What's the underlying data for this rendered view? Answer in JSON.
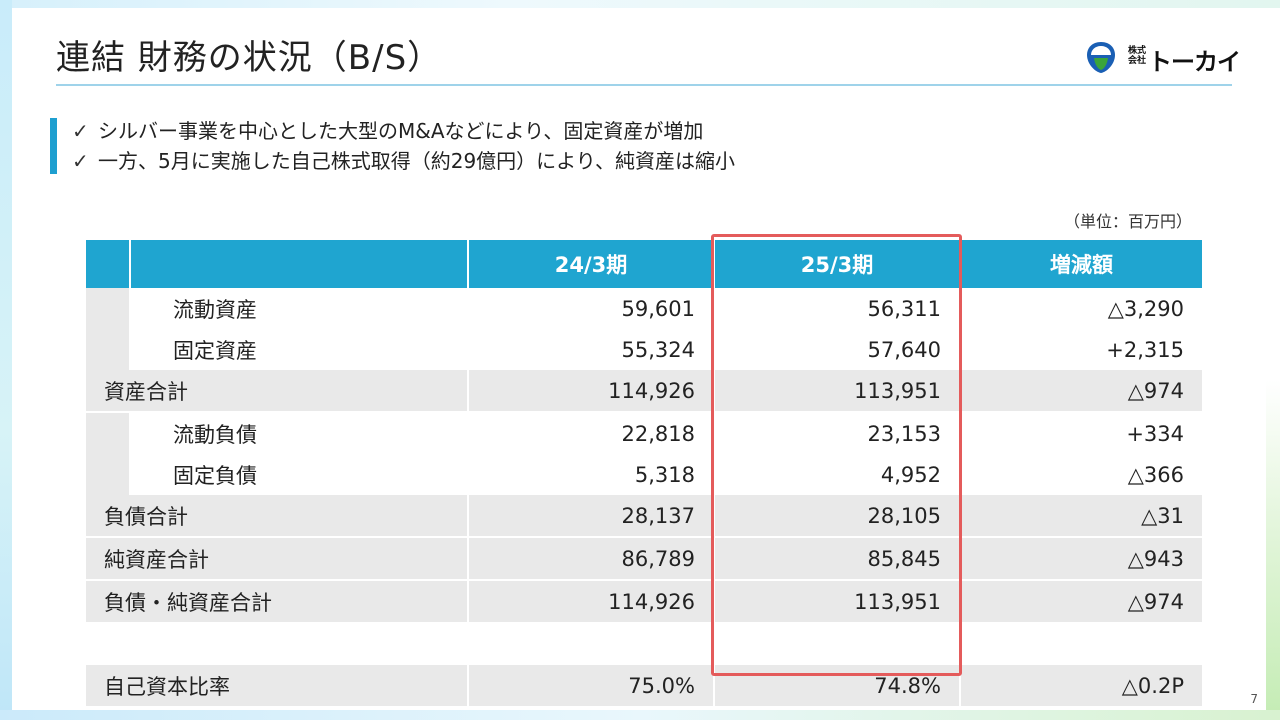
{
  "slide": {
    "title": "連結 財務の状況（B/S）",
    "logo": {
      "small_text": "株式\n会社",
      "name": "トーカイ"
    },
    "bullets": [
      {
        "mark": "✓",
        "text": "シルバー事業を中心とした大型のM&Aなどにより、固定資産が増加"
      },
      {
        "mark": "✓",
        "text": "一方、5月に実施した自己株式取得（約29億円）により、純資産は縮小"
      }
    ],
    "unit": "（単位：百万円）",
    "page_number": "7"
  },
  "table": {
    "headers": [
      "",
      "24/3期",
      "25/3期",
      "増減額"
    ],
    "rows": [
      {
        "label": "流動資産",
        "v1": "59,601",
        "v2": "56,311",
        "diff": "△3,290"
      },
      {
        "label": "固定資産",
        "v1": "55,324",
        "v2": "57,640",
        "diff": "+2,315"
      },
      {
        "label": "資産合計",
        "v1": "114,926",
        "v2": "113,951",
        "diff": "△974"
      },
      {
        "label": "流動負債",
        "v1": "22,818",
        "v2": "23,153",
        "diff": "+334"
      },
      {
        "label": "固定負債",
        "v1": "5,318",
        "v2": "4,952",
        "diff": "△366"
      },
      {
        "label": "負債合計",
        "v1": "28,137",
        "v2": "28,105",
        "diff": "△31"
      },
      {
        "label": "純資産合計",
        "v1": "86,789",
        "v2": "85,845",
        "diff": "△943"
      },
      {
        "label": "負債・純資産合計",
        "v1": "114,926",
        "v2": "113,951",
        "diff": "△974"
      }
    ],
    "ratio_row": {
      "label": "自己資本比率",
      "v1": "75.0%",
      "v2": "74.8%",
      "diff": "△0.2P"
    }
  },
  "colors": {
    "header_bg": "#1fa5d0",
    "highlight_border": "#e45b5b",
    "accent_bar": "#1e9fd0",
    "row_gray": "#e9e9e9"
  }
}
